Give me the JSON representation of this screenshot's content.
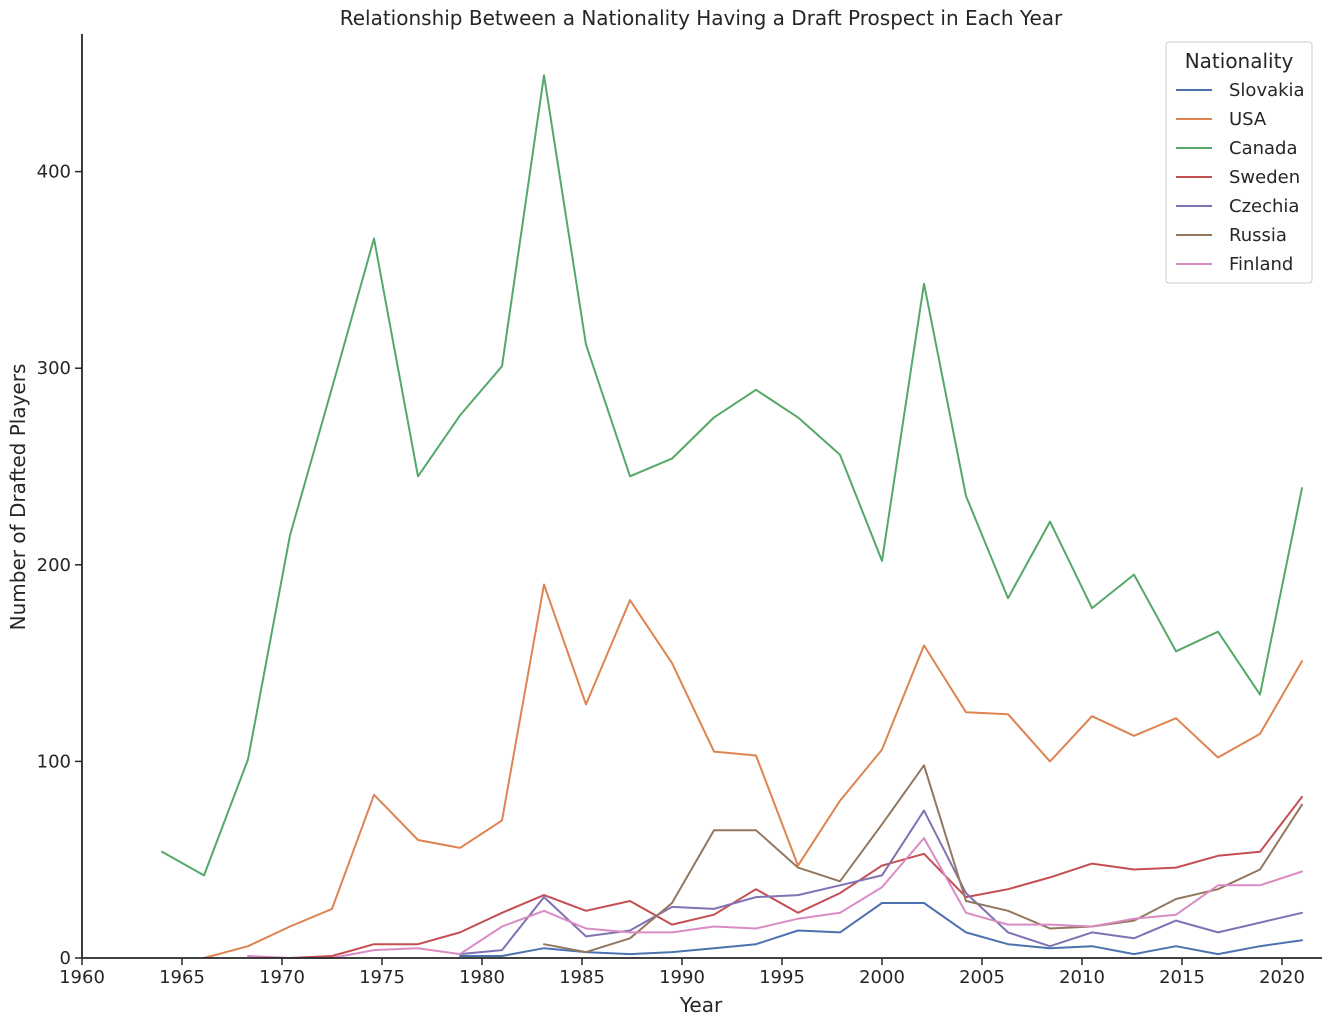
{
  "chart_data": {
    "type": "line",
    "title": "Relationship Between a Nationality Having a Draft Prospect in Each Year",
    "xlabel": "Year",
    "ylabel": "Number of Drafted Players",
    "xlim": [
      1960,
      2022
    ],
    "ylim": [
      0,
      470
    ],
    "xticks": [
      1960,
      1965,
      1970,
      1975,
      1980,
      1985,
      1990,
      1995,
      2000,
      2005,
      2010,
      2015,
      2020
    ],
    "yticks": [
      0,
      100,
      200,
      300,
      400
    ],
    "grid": false,
    "legend": {
      "title": "Nationality",
      "position": "top-right"
    },
    "x": [
      1964,
      1966.1,
      1968.3,
      1970.4,
      1972.5,
      1974.6,
      1976.8,
      1978.9,
      1981,
      1983.1,
      1985.2,
      1987.4,
      1989.5,
      1991.6,
      1993.7,
      1995.8,
      1997.9,
      2000,
      2002.1,
      2004.2,
      2006.3,
      2008.4,
      2010.5,
      2012.6,
      2014.7,
      2016.8,
      2018.9,
      2021
    ],
    "series": [
      {
        "name": "Slovakia",
        "color": "#4c72b0",
        "values": [
          null,
          null,
          null,
          null,
          null,
          null,
          null,
          1,
          1,
          5,
          3,
          2,
          3,
          5,
          7,
          14,
          13,
          28,
          28,
          13,
          7,
          5,
          6,
          2,
          6,
          2,
          6,
          9
        ]
      },
      {
        "name": "USA",
        "color": "#dd8452",
        "values": [
          null,
          0,
          6,
          16,
          25,
          83,
          60,
          56,
          70,
          190,
          129,
          182,
          150,
          105,
          103,
          47,
          80,
          106,
          159,
          125,
          124,
          100,
          123,
          113,
          122,
          102,
          114,
          151
        ]
      },
      {
        "name": "Canada",
        "color": "#55a868",
        "values": [
          54,
          42,
          101,
          215,
          290,
          366,
          245,
          276,
          301,
          449,
          312,
          245,
          254,
          275,
          289,
          275,
          256,
          202,
          343,
          235,
          183,
          222,
          178,
          195,
          156,
          166,
          134,
          239
        ]
      },
      {
        "name": "Sweden",
        "color": "#c44e52",
        "values": [
          null,
          null,
          null,
          0,
          1,
          7,
          7,
          13,
          23,
          32,
          24,
          29,
          17,
          22,
          35,
          23,
          33,
          47,
          53,
          31,
          35,
          41,
          48,
          45,
          46,
          52,
          54,
          82
        ]
      },
      {
        "name": "Czechia",
        "color": "#8172b3",
        "values": [
          null,
          null,
          null,
          null,
          null,
          null,
          null,
          2,
          4,
          31,
          11,
          14,
          26,
          25,
          31,
          32,
          37,
          42,
          75,
          33,
          13,
          6,
          13,
          10,
          19,
          13,
          18,
          23
        ]
      },
      {
        "name": "Russia",
        "color": "#937860",
        "values": [
          null,
          null,
          null,
          null,
          null,
          null,
          null,
          null,
          null,
          7,
          3,
          10,
          28,
          65,
          65,
          46,
          39,
          68,
          98,
          29,
          24,
          15,
          16,
          19,
          30,
          35,
          45,
          78
        ]
      },
      {
        "name": "Finland",
        "color": "#da8bc3",
        "values": [
          null,
          null,
          1,
          0,
          0,
          4,
          5,
          2,
          16,
          24,
          15,
          13,
          13,
          16,
          15,
          20,
          23,
          36,
          61,
          23,
          17,
          17,
          16,
          20,
          22,
          37,
          37,
          44
        ]
      }
    ]
  }
}
